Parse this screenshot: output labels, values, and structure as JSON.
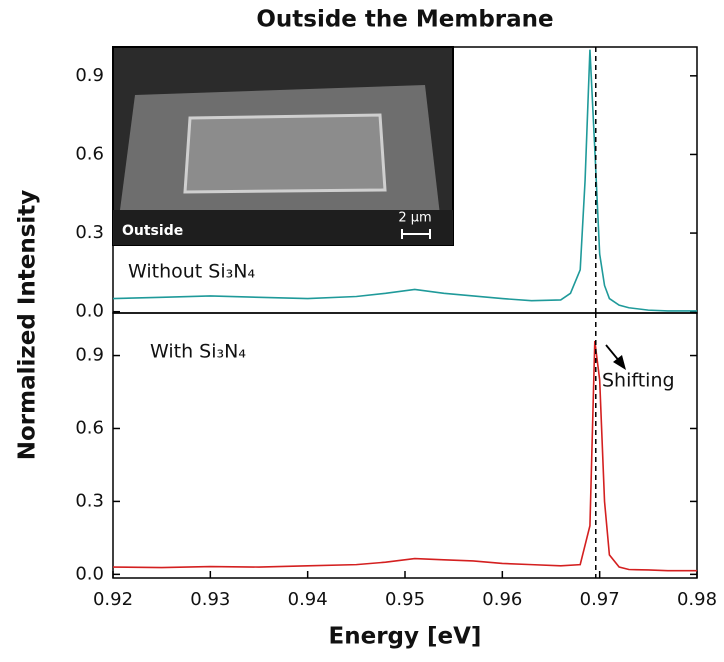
{
  "chart_data": [
    {
      "type": "line",
      "title": "Outside the Membrane",
      "ylabel": "Normalized Intensity",
      "x": [
        0.92,
        0.925,
        0.93,
        0.935,
        0.94,
        0.945,
        0.948,
        0.951,
        0.954,
        0.957,
        0.96,
        0.963,
        0.966,
        0.967,
        0.968,
        0.9685,
        0.969,
        0.9695,
        0.97,
        0.9705,
        0.971,
        0.972,
        0.973,
        0.975,
        0.977,
        0.98
      ],
      "series": [
        {
          "name": "Without Si₃N₄",
          "color": "#1f9a9a",
          "values": [
            0.05,
            0.055,
            0.06,
            0.055,
            0.05,
            0.058,
            0.07,
            0.085,
            0.07,
            0.06,
            0.05,
            0.042,
            0.045,
            0.07,
            0.16,
            0.5,
            1.0,
            0.62,
            0.22,
            0.1,
            0.05,
            0.025,
            0.015,
            0.006,
            0.003,
            0.003
          ]
        }
      ],
      "xlim": [
        0.92,
        0.98
      ],
      "ylim": [
        -0.005,
        1.01
      ],
      "yticks": [
        {
          "value": 0,
          "label": "0.0"
        },
        0.3,
        0.6,
        0.9
      ],
      "vline": 0.9696,
      "inset": {
        "label": "Outside",
        "scale": "2 µm"
      }
    },
    {
      "type": "line",
      "xlabel": "Energy [eV]",
      "x": [
        0.92,
        0.925,
        0.93,
        0.935,
        0.94,
        0.945,
        0.948,
        0.951,
        0.954,
        0.957,
        0.96,
        0.963,
        0.966,
        0.968,
        0.969,
        0.9695,
        0.97,
        0.9705,
        0.971,
        0.972,
        0.973,
        0.975,
        0.977,
        0.98
      ],
      "series": [
        {
          "name": "With Si₃N₄",
          "color": "#d42020",
          "values": [
            0.03,
            0.028,
            0.032,
            0.03,
            0.035,
            0.04,
            0.05,
            0.065,
            0.06,
            0.055,
            0.045,
            0.04,
            0.035,
            0.04,
            0.2,
            0.96,
            0.8,
            0.3,
            0.08,
            0.03,
            0.02,
            0.018,
            0.015,
            0.015
          ]
        }
      ],
      "xlim": [
        0.92,
        0.98
      ],
      "ylim": [
        -0.015,
        1.075
      ],
      "xticks": [
        0.92,
        0.93,
        0.94,
        0.95,
        0.96,
        0.97,
        0.98
      ],
      "yticks": [
        {
          "value": 0,
          "label": "0.0"
        },
        0.3,
        0.6,
        0.9
      ],
      "vline": 0.9696,
      "annotation": "Shifting"
    }
  ]
}
